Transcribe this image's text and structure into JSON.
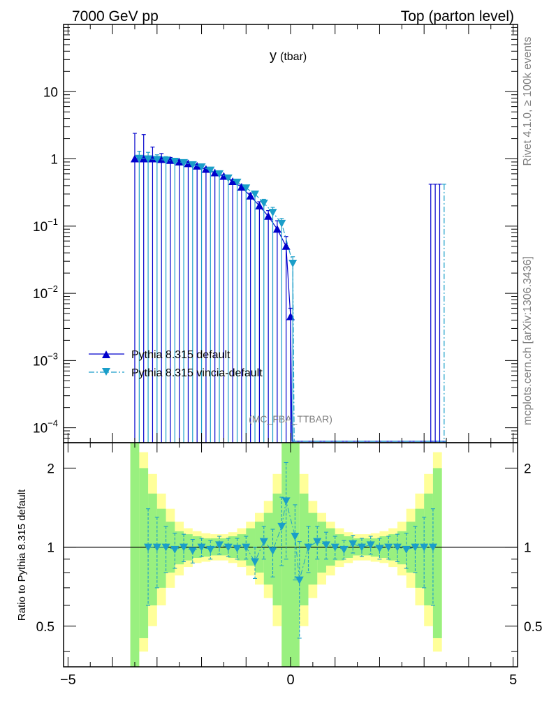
{
  "header": {
    "left": "7000 GeV pp",
    "right": "Top (parton level)"
  },
  "side_labels": {
    "rivet": "Rivet 4.1.0, ≥ 100k events",
    "mcplots": "mcplots.cern.ch [arXiv:1306.3436]"
  },
  "chart_data": [
    {
      "type": "line",
      "title": "y",
      "title_suffix": "(tbar)",
      "watermark": "(MC_FBA_TTBAR)",
      "xlabel": "",
      "ylabel": "",
      "yscale": "log",
      "xlim": [
        -5.1,
        5.1
      ],
      "ylim": [
        6e-05,
        100
      ],
      "x_ticks": [
        -5,
        0,
        5
      ],
      "y_ticks": [
        {
          "value": 0.0001,
          "base": "10",
          "exp": "−4"
        },
        {
          "value": 0.001,
          "base": "10",
          "exp": "−3"
        },
        {
          "value": 0.01,
          "base": "10",
          "exp": "−2"
        },
        {
          "value": 0.1,
          "base": "10",
          "exp": "−1"
        },
        {
          "value": 1,
          "base": "1",
          "exp": ""
        },
        {
          "value": 10,
          "base": "10",
          "exp": ""
        }
      ],
      "legend_position": "lower-left",
      "series": [
        {
          "name": "Pythia 8.315 default",
          "color": "#0000cc",
          "marker": "triangle-up",
          "line": "solid",
          "x": [
            -3.5,
            -3.3,
            -3.1,
            -2.9,
            -2.7,
            -2.5,
            -2.3,
            -2.1,
            -1.9,
            -1.7,
            -1.5,
            -1.3,
            -1.1,
            -0.9,
            -0.7,
            -0.5,
            -0.3,
            -0.1,
            0.0
          ],
          "y": [
            1.0,
            1.0,
            1.0,
            0.98,
            0.95,
            0.9,
            0.85,
            0.78,
            0.7,
            0.62,
            0.55,
            0.46,
            0.38,
            0.28,
            0.2,
            0.14,
            0.09,
            0.05,
            0.0045
          ],
          "yerr_hi": [
            2.4,
            2.3,
            1.5,
            1.2,
            1.05,
            0.97,
            0.9,
            0.82,
            0.74,
            0.65,
            0.58,
            0.49,
            0.41,
            0.31,
            0.23,
            0.17,
            0.12,
            0.07,
            0.006
          ]
        },
        {
          "name": "Pythia 8.315 vincia-default",
          "color": "#1a9ec9",
          "marker": "triangle-down",
          "line": "dash-dot",
          "x": [
            -3.4,
            -3.2,
            -3.0,
            -2.8,
            -2.6,
            -2.4,
            -2.2,
            -2.0,
            -1.8,
            -1.6,
            -1.4,
            -1.2,
            -1.0,
            -0.8,
            -0.6,
            -0.4,
            -0.2,
            0.05
          ],
          "y": [
            1.02,
            1.0,
            0.98,
            0.96,
            0.92,
            0.88,
            0.82,
            0.76,
            0.68,
            0.6,
            0.52,
            0.45,
            0.37,
            0.3,
            0.22,
            0.16,
            0.11,
            0.028
          ],
          "yerr_hi": [
            1.3,
            1.25,
            1.15,
            1.08,
            1.0,
            0.95,
            0.88,
            0.8,
            0.72,
            0.64,
            0.56,
            0.48,
            0.4,
            0.33,
            0.25,
            0.19,
            0.13,
            0.035
          ]
        }
      ],
      "spikes": [
        {
          "x": 3.15,
          "value": 0.42,
          "series": "Pythia 8.315 default"
        },
        {
          "x": 3.25,
          "value": 0.42,
          "series": "Pythia 8.315 default"
        },
        {
          "x": 3.35,
          "value": 0.42,
          "series": "Pythia 8.315 default"
        },
        {
          "x": 3.45,
          "value": 0.42,
          "series": "Pythia 8.315 vincia-default"
        }
      ]
    },
    {
      "type": "line",
      "ylabel": "Ratio to Pythia 8.315 default",
      "xlim": [
        -5.1,
        5.1
      ],
      "ylim": [
        0.35,
        2.5
      ],
      "x_ticks": [
        -5,
        0,
        5
      ],
      "y_ticks": [
        0.5,
        1,
        2
      ],
      "reference": 1,
      "uncertainty_band": {
        "x": [
          -3.5,
          -3.3,
          -3.1,
          -2.9,
          -2.7,
          -2.5,
          -2.3,
          -2.1,
          -1.9,
          -1.7,
          -1.5,
          -1.3,
          -1.1,
          -0.9,
          -0.7,
          -0.5,
          -0.3,
          -0.1,
          0.1,
          0.3,
          0.5,
          0.7,
          0.9,
          1.1,
          1.3,
          1.5,
          1.7,
          1.9,
          2.1,
          2.3,
          2.5,
          2.7,
          2.9,
          3.1,
          3.3
        ],
        "inner_hi": [
          2.5,
          2.0,
          1.6,
          1.4,
          1.25,
          1.15,
          1.12,
          1.1,
          1.08,
          1.08,
          1.08,
          1.1,
          1.12,
          1.18,
          1.25,
          1.35,
          1.6,
          2.5,
          2.5,
          1.6,
          1.35,
          1.25,
          1.18,
          1.12,
          1.1,
          1.08,
          1.08,
          1.08,
          1.1,
          1.12,
          1.15,
          1.25,
          1.4,
          1.6,
          2.0
        ],
        "inner_lo": [
          0.35,
          0.45,
          0.6,
          0.7,
          0.8,
          0.86,
          0.89,
          0.91,
          0.92,
          0.93,
          0.93,
          0.91,
          0.89,
          0.85,
          0.8,
          0.72,
          0.6,
          0.35,
          0.35,
          0.6,
          0.72,
          0.8,
          0.85,
          0.89,
          0.91,
          0.93,
          0.93,
          0.92,
          0.91,
          0.89,
          0.86,
          0.8,
          0.7,
          0.6,
          0.45
        ],
        "outer_hi": [
          2.5,
          2.3,
          1.9,
          1.6,
          1.4,
          1.25,
          1.18,
          1.15,
          1.13,
          1.12,
          1.12,
          1.14,
          1.18,
          1.25,
          1.35,
          1.5,
          1.9,
          2.5,
          2.5,
          1.9,
          1.5,
          1.35,
          1.25,
          1.18,
          1.14,
          1.12,
          1.12,
          1.13,
          1.15,
          1.18,
          1.25,
          1.4,
          1.6,
          1.9,
          2.3
        ],
        "outer_lo": [
          0.35,
          0.4,
          0.5,
          0.6,
          0.7,
          0.78,
          0.84,
          0.87,
          0.88,
          0.89,
          0.89,
          0.87,
          0.84,
          0.78,
          0.72,
          0.64,
          0.5,
          0.35,
          0.35,
          0.5,
          0.64,
          0.72,
          0.78,
          0.84,
          0.87,
          0.89,
          0.89,
          0.88,
          0.87,
          0.84,
          0.78,
          0.7,
          0.6,
          0.5,
          0.4
        ]
      },
      "series": [
        {
          "name": "Pythia 8.315 vincia-default",
          "color": "#1a9ec9",
          "marker": "triangle-down",
          "x": [
            -3.2,
            -3.0,
            -2.8,
            -2.6,
            -2.4,
            -2.2,
            -2.0,
            -1.8,
            -1.6,
            -1.4,
            -1.2,
            -1.0,
            -0.8,
            -0.6,
            -0.4,
            -0.2,
            -0.1,
            0.1,
            0.2,
            0.4,
            0.6,
            0.8,
            1.0,
            1.2,
            1.4,
            1.6,
            1.8,
            2.0,
            2.2,
            2.4,
            2.6,
            2.8,
            3.0,
            3.2
          ],
          "y": [
            1.0,
            1.0,
            1.0,
            0.98,
            1.0,
            0.97,
            1.0,
            0.98,
            1.02,
            1.0,
            0.99,
            1.0,
            0.88,
            1.05,
            0.97,
            1.2,
            1.5,
            1.1,
            0.75,
            1.0,
            1.05,
            1.02,
            1.0,
            0.98,
            1.03,
            1.0,
            1.02,
            0.99,
            1.0,
            1.0,
            0.98,
            1.0,
            1.0,
            1.0
          ],
          "err": [
            0.4,
            0.3,
            0.2,
            0.15,
            0.12,
            0.1,
            0.08,
            0.08,
            0.08,
            0.08,
            0.09,
            0.1,
            0.12,
            0.15,
            0.2,
            0.35,
            0.6,
            0.35,
            0.3,
            0.2,
            0.15,
            0.12,
            0.1,
            0.08,
            0.08,
            0.08,
            0.08,
            0.09,
            0.1,
            0.12,
            0.15,
            0.2,
            0.3,
            0.4
          ]
        }
      ]
    }
  ]
}
